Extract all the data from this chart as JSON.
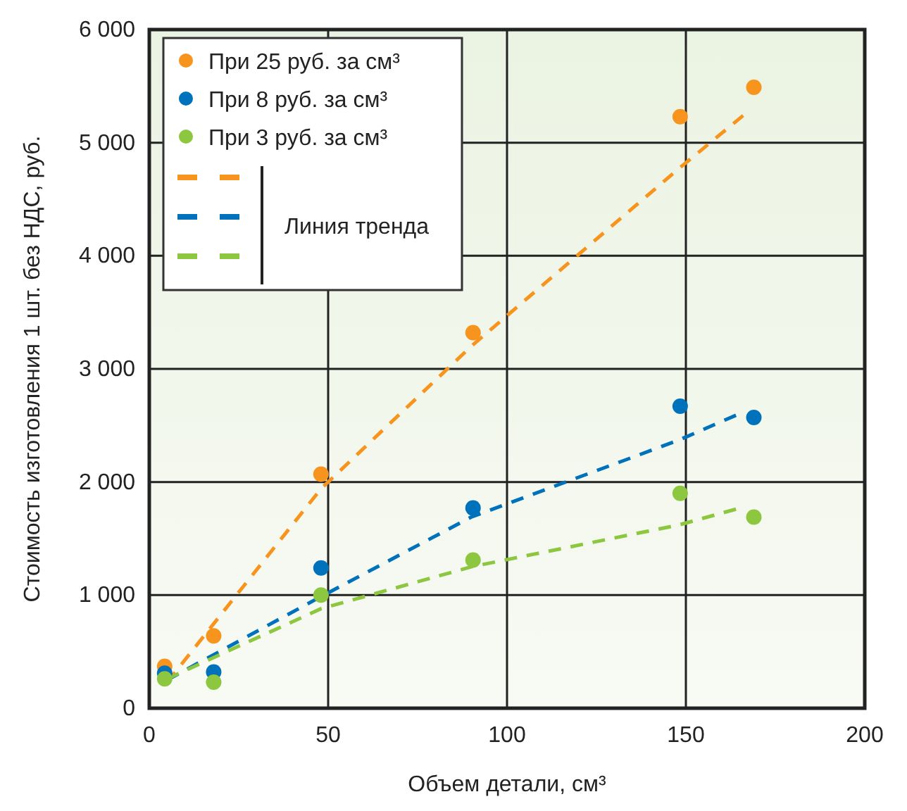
{
  "chart_data": {
    "type": "scatter",
    "xlabel": "Объем детали, см³",
    "ylabel": "Стоимость изготовления 1 шт. без НДС, руб.",
    "xlim": [
      0,
      200
    ],
    "xticks": [
      0,
      50,
      100,
      150,
      200
    ],
    "ylim": [
      0,
      6000
    ],
    "yticks": [
      0,
      {
        "value": 1000,
        "label": "1 000"
      },
      {
        "value": 2000,
        "label": "2 000"
      },
      {
        "value": 3000,
        "label": "3 000"
      },
      {
        "value": 4000,
        "label": "4 000"
      },
      {
        "value": 5000,
        "label": "5 000"
      },
      {
        "value": 6000,
        "label": "6 000"
      }
    ],
    "grid": true,
    "legend": "top left",
    "marker": "circle",
    "x": [
      4.3,
      18,
      48,
      90.5,
      148.4,
      169
    ],
    "series": [
      {
        "name": "При 25 руб. за см³",
        "color": "#f7941d",
        "values": [
          370,
          640,
          2070,
          3320,
          5230,
          5490
        ]
      },
      {
        "name": "При 8 руб. за см³",
        "color": "#0072bc",
        "values": [
          310,
          320,
          1240,
          1770,
          2670,
          2570
        ]
      },
      {
        "name": "При 3 руб. за см³",
        "color": "#8dc63f",
        "values": [
          260,
          230,
          1000,
          1310,
          1900,
          1690
        ]
      },
      {
        "type": "line",
        "marker": "none",
        "color": "#f7941d",
        "line_style": "dashed",
        "x": [
          5,
          48,
          90,
          148,
          166
        ],
        "values": [
          230,
          1940,
          3200,
          4770,
          5240
        ]
      },
      {
        "type": "line",
        "marker": "none",
        "color": "#0072bc",
        "line_style": "dashed",
        "x": [
          5,
          47,
          90,
          148,
          164
        ],
        "values": [
          250,
          970,
          1690,
          2370,
          2590
        ]
      },
      {
        "type": "line",
        "marker": "none",
        "color": "#8dc63f",
        "line_style": "dashed",
        "x": [
          5,
          48,
          90,
          148,
          164
        ],
        "values": [
          260,
          880,
          1250,
          1620,
          1760
        ]
      }
    ],
    "annotations": [
      "Линия тренда"
    ]
  }
}
